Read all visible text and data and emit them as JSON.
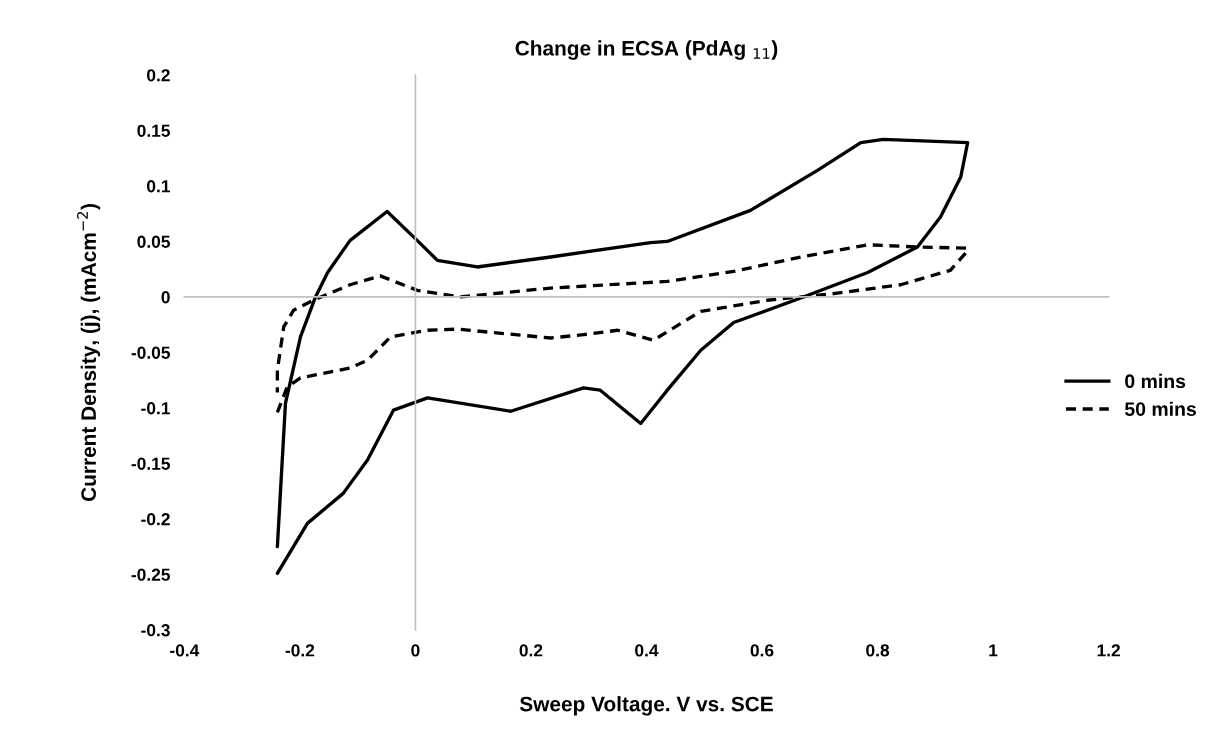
{
  "chart_data": {
    "type": "line",
    "title": "Change in ECSA (PdAg $_{11}$)",
    "xlabel": "Sweep Voltage. V vs. SCE",
    "ylabel": "Current Density, (j), (mAcm$^{−2}$)",
    "xlim": [
      -0.4,
      1.2
    ],
    "ylim": [
      -0.3,
      0.2
    ],
    "xticks": [
      -0.4,
      -0.2,
      0,
      0.2,
      0.4,
      0.6,
      0.8,
      1,
      1.2
    ],
    "yticks": [
      -0.3,
      -0.25,
      -0.2,
      -0.15,
      -0.1,
      -0.05,
      0,
      0.05,
      0.1,
      0.15,
      0.2
    ],
    "legend": "right",
    "marker": "none",
    "series": [
      {
        "name": "0 mins",
        "color": "#000000",
        "line_style": "solid",
        "x": [
          -0.239,
          -0.225,
          -0.199,
          -0.173,
          -0.152,
          -0.113,
          -0.049,
          0.003,
          0.038,
          0.107,
          0.234,
          0.407,
          0.436,
          0.58,
          0.696,
          0.771,
          0.81,
          0.956,
          0.944,
          0.909,
          0.869,
          0.783,
          0.667,
          0.551,
          0.494,
          0.436,
          0.39,
          0.32,
          0.291,
          0.165,
          0.021,
          -0.038,
          -0.083,
          -0.125,
          -0.187,
          -0.239
        ],
        "values": [
          -0.225,
          -0.096,
          -0.036,
          0.0,
          0.022,
          0.051,
          0.077,
          0.051,
          0.033,
          0.027,
          0.036,
          0.049,
          0.05,
          0.078,
          0.114,
          0.139,
          0.142,
          0.139,
          0.108,
          0.072,
          0.045,
          0.022,
          -0.001,
          -0.023,
          -0.048,
          -0.084,
          -0.114,
          -0.084,
          -0.082,
          -0.103,
          -0.091,
          -0.102,
          -0.147,
          -0.177,
          -0.204,
          -0.249
        ]
      },
      {
        "name": "50 mins",
        "color": "#000000",
        "line_style": "dashed",
        "x": [
          -0.239,
          -0.222,
          -0.199,
          -0.113,
          -0.083,
          -0.043,
          0.021,
          0.073,
          0.234,
          0.291,
          0.35,
          0.412,
          0.494,
          0.609,
          0.724,
          0.84,
          0.926,
          0.955,
          0.955,
          0.869,
          0.783,
          0.667,
          0.551,
          0.436,
          0.234,
          0.078,
          0.003,
          -0.061,
          -0.113,
          -0.177,
          -0.211,
          -0.228,
          -0.239,
          -0.239
        ],
        "values": [
          -0.104,
          -0.081,
          -0.073,
          -0.064,
          -0.057,
          -0.036,
          -0.03,
          -0.029,
          -0.037,
          -0.034,
          -0.03,
          -0.039,
          -0.013,
          -0.003,
          0.003,
          0.011,
          0.024,
          0.041,
          0.044,
          0.045,
          0.047,
          0.036,
          0.023,
          0.014,
          0.008,
          0.0,
          0.006,
          0.019,
          0.011,
          -0.003,
          -0.012,
          -0.027,
          -0.066,
          -0.086
        ]
      }
    ]
  }
}
